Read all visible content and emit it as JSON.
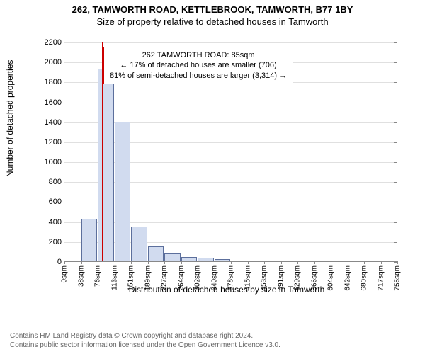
{
  "header": {
    "line1": "262, TAMWORTH ROAD, KETTLEBROOK, TAMWORTH, B77 1BY",
    "line2": "Size of property relative to detached houses in Tamworth"
  },
  "chart": {
    "type": "histogram",
    "ylabel": "Number of detached properties",
    "xlabel": "Distribution of detached houses by size in Tamworth",
    "ylim": [
      0,
      2200
    ],
    "ytick_step": 200,
    "xtick_labels": [
      "0sqm",
      "38sqm",
      "76sqm",
      "113sqm",
      "151sqm",
      "189sqm",
      "227sqm",
      "264sqm",
      "302sqm",
      "340sqm",
      "378sqm",
      "415sqm",
      "453sqm",
      "491sqm",
      "529sqm",
      "566sqm",
      "604sqm",
      "642sqm",
      "680sqm",
      "717sqm",
      "755sqm"
    ],
    "bars": [
      {
        "bin": 1,
        "value": 425
      },
      {
        "bin": 2,
        "value": 1930
      },
      {
        "bin": 3,
        "value": 1395
      },
      {
        "bin": 4,
        "value": 350
      },
      {
        "bin": 5,
        "value": 150
      },
      {
        "bin": 6,
        "value": 80
      },
      {
        "bin": 7,
        "value": 45
      },
      {
        "bin": 8,
        "value": 35
      },
      {
        "bin": 9,
        "value": 20
      }
    ],
    "bar_fill": "#d1dbef",
    "bar_stroke": "#5c6f9c",
    "grid_color": "#e0e0e0",
    "axis_color": "#888888",
    "background_color": "#ffffff",
    "title_fontsize": 13,
    "label_fontsize": 12,
    "tick_fontsize": 11,
    "marker": {
      "sqm": 85,
      "color": "#cc0000"
    },
    "callout": {
      "line1": "262 TAMWORTH ROAD: 85sqm",
      "line2": "← 17% of detached houses are smaller (706)",
      "line3": "81% of semi-detached houses are larger (3,314) →",
      "border_color": "#cc0000"
    }
  },
  "footer": {
    "line1": "Contains HM Land Registry data © Crown copyright and database right 2024.",
    "line2": "Contains public sector information licensed under the Open Government Licence v3.0."
  }
}
